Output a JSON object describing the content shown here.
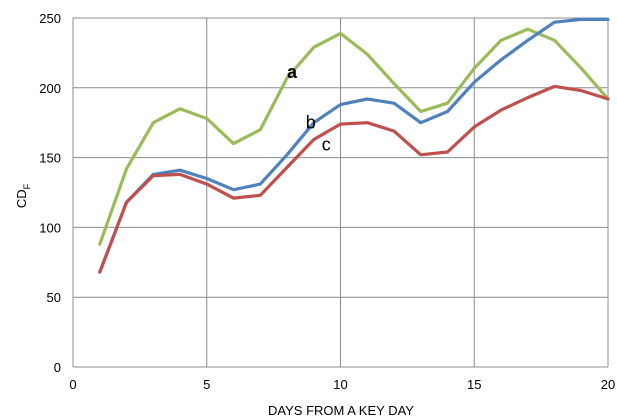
{
  "chart_data": {
    "type": "line",
    "title": "",
    "xlabel": "DAYS FROM A KEY DAY",
    "ylabel_main": "CD",
    "ylabel_sub": "F",
    "xlim": [
      0,
      20
    ],
    "ylim": [
      0,
      250
    ],
    "xticks": [
      0,
      5,
      10,
      15,
      20
    ],
    "yticks": [
      0,
      50,
      100,
      150,
      200,
      250
    ],
    "grid": true,
    "legend": "none",
    "x": [
      1,
      2,
      3,
      4,
      5,
      6,
      7,
      8,
      9,
      10,
      11,
      12,
      13,
      14,
      15,
      16,
      17,
      18,
      19,
      20
    ],
    "series": [
      {
        "name": "a",
        "color": "#9bbb59",
        "values": [
          88,
          142,
          175,
          185,
          178,
          160,
          170,
          207,
          229,
          239,
          224,
          203,
          183,
          189,
          214,
          234,
          242,
          234,
          214,
          192
        ],
        "label_at": [
          8,
          207
        ]
      },
      {
        "name": "b",
        "color": "#4f81bd",
        "values": [
          68,
          118,
          138,
          141,
          135,
          127,
          131,
          152,
          175,
          188,
          192,
          189,
          175,
          183,
          204,
          220,
          234,
          247,
          249,
          249
        ],
        "label_at": [
          8.7,
          171
        ]
      },
      {
        "name": "c",
        "color": "#c0504d",
        "values": [
          68,
          118,
          137,
          138,
          131,
          121,
          123,
          143,
          163,
          174,
          175,
          169,
          152,
          154,
          172,
          184,
          193,
          201,
          198,
          192
        ],
        "label_at": [
          9.3,
          155
        ]
      }
    ]
  }
}
